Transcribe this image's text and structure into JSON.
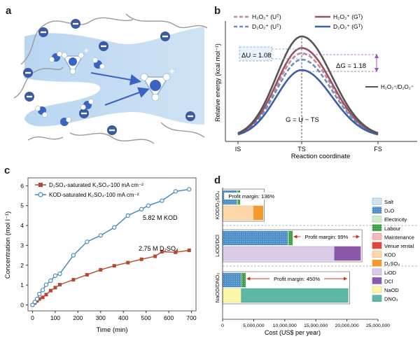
{
  "panels": {
    "a": {
      "letter": "a"
    },
    "b": {
      "letter": "b"
    },
    "c": {
      "letter": "c"
    },
    "d": {
      "letter": "d"
    }
  },
  "chart_data": [
    {
      "panel": "b",
      "type": "line",
      "xlabel": "Reaction coordinate",
      "ylabel": "Relative energy (kcal mol⁻¹)",
      "ticks": [
        "IS",
        "TS",
        "FS"
      ],
      "series": [
        {
          "name": "H₂O₂⁺ (Uᵀ)",
          "color": "#c48a98",
          "dash": true,
          "barrier": 0.8
        },
        {
          "name": "D₂O₂⁺ (Uᵀ)",
          "color": "#6b8fc0",
          "dash": true,
          "barrier": 0.74
        },
        {
          "name": "H₂O₂⁺ (Gᵀ)",
          "color": "#9c5166",
          "dash": false,
          "barrier": 0.85
        },
        {
          "name": "D₂O₂⁺ (Gᵀ)",
          "color": "#3c5fa6",
          "dash": false,
          "barrier": 0.64
        },
        {
          "name": "H₂O₂⁺/D₂O₂⁺",
          "color": "#555555",
          "dash": false,
          "barrier": 0.96
        }
      ],
      "annotations": {
        "du": "ΔU = 1.08",
        "dg": "ΔG = 1.18",
        "gibbs": "G = U − TS"
      },
      "legend": {
        "h_u": "H₂O₂⁺ (Uᵀ)",
        "d_u": "D₂O₂⁺ (Uᵀ)",
        "h_g": "H₂O₂⁺ (Gᵀ)",
        "d_g": "D₂O₂⁺ (Gᵀ)"
      }
    },
    {
      "panel": "c",
      "type": "line",
      "xlabel": "Time (min)",
      "ylabel": "Concentration (mol l⁻¹)",
      "xlim": [
        -20,
        720
      ],
      "ylim": [
        -0.3,
        6.4
      ],
      "xticks": [
        0,
        100,
        200,
        300,
        400,
        500,
        600,
        700
      ],
      "yticks": [
        0,
        1,
        2,
        3,
        4,
        5,
        6
      ],
      "series": [
        {
          "name": "D₂SO₄-saturated K₂SO₄-100 mA cm⁻²",
          "color": "#b5482e",
          "marker": "square",
          "end_label": "2.75 M D₂SO₄",
          "x": [
            0,
            10,
            20,
            30,
            45,
            60,
            80,
            100,
            120,
            180,
            240,
            300,
            360,
            420,
            480,
            540,
            570,
            630,
            690
          ],
          "y": [
            0,
            0.1,
            0.2,
            0.3,
            0.38,
            0.52,
            0.72,
            0.87,
            1.02,
            1.27,
            1.52,
            1.77,
            1.97,
            2.13,
            2.3,
            2.45,
            2.68,
            2.65,
            2.75
          ]
        },
        {
          "name": "KOD-saturated K₂SO₄-100 mA cm⁻²",
          "color": "#3e86b8",
          "marker": "circle",
          "end_label": "5.82 M KOD",
          "x": [
            0,
            10,
            20,
            30,
            45,
            60,
            80,
            100,
            120,
            180,
            240,
            300,
            360,
            420,
            480,
            510,
            570,
            630,
            690
          ],
          "y": [
            0,
            0.15,
            0.3,
            0.55,
            0.75,
            1.02,
            1.22,
            1.47,
            1.57,
            2.5,
            3.18,
            3.5,
            3.9,
            4.5,
            4.82,
            5.0,
            5.25,
            5.72,
            5.82
          ]
        }
      ]
    },
    {
      "panel": "d",
      "type": "bar",
      "xlabel": "Cost (US$ per year)",
      "xlim": [
        0,
        25000000
      ],
      "xticks": [
        "0",
        "5,000,000",
        "10,000,000",
        "15,000,000",
        "20,000,000",
        "25,000,000"
      ],
      "xtick_values": [
        0,
        5000000,
        10000000,
        15000000,
        20000000,
        25000000
      ],
      "groups": [
        {
          "label": "KOD/D₂SO₄",
          "profit": "Profit margin: 136%",
          "top": [
            {
              "component": "Salt",
              "value": 0
            },
            {
              "component": "D₂O",
              "value": 2300000
            },
            {
              "component": "Electricity",
              "value": 150000
            },
            {
              "component": "Labour",
              "value": 350000
            },
            {
              "component": "Maintenance",
              "value": 0
            }
          ],
          "bottom": [
            {
              "component": "KOD",
              "value": 5000000
            },
            {
              "component": "D₂SO₄",
              "value": 1500000
            }
          ]
        },
        {
          "label": "LiOD/DCl",
          "profit": "Profit margin: 99%",
          "top": [
            {
              "component": "D₂O",
              "value": 10500000
            },
            {
              "component": "Electricity",
              "value": 150000
            },
            {
              "component": "Labour",
              "value": 600000
            },
            {
              "component": "Maintenance",
              "value": 0
            }
          ],
          "bottom": [
            {
              "component": "LiOD",
              "value": 18000000
            },
            {
              "component": "DCl",
              "value": 4200000
            }
          ]
        },
        {
          "label": "NaOD/DNO₃",
          "profit": "Profit margin: 450%",
          "top": [
            {
              "component": "D₂O",
              "value": 3000000
            },
            {
              "component": "Electricity",
              "value": 100000
            },
            {
              "component": "Labour",
              "value": 600000
            },
            {
              "component": "Maintenance",
              "value": 0
            }
          ],
          "bottom": [
            {
              "component": "NaOD",
              "value": 3000000
            },
            {
              "component": "DNO₃",
              "value": 17200000
            }
          ]
        }
      ],
      "legend": [
        {
          "label": "Salt",
          "color": "#cfe3f2",
          "hatch": "dots",
          "edge": "#6ea7d6"
        },
        {
          "label": "D₂O",
          "color": "#4f8fc8",
          "hatch": "dots",
          "edge": "#4f8fc8"
        },
        {
          "label": "Electricity",
          "color": "#cdeacd",
          "hatch": "dots",
          "edge": "#8cc98c"
        },
        {
          "label": "Labour",
          "color": "#3e9e4a",
          "hatch": "dots",
          "edge": "#3e9e4a"
        },
        {
          "label": "Maintenance",
          "color": "#f2b6b6",
          "hatch": "dots",
          "edge": "#e08a8a"
        },
        {
          "label": "Venue rental",
          "color": "#e0443c",
          "hatch": "none",
          "edge": "#e0443c"
        },
        {
          "label": "KOD",
          "color": "#fcd8a8",
          "hatch": "none",
          "edge": "#e8b070"
        },
        {
          "label": "D₂SO₄",
          "color": "#f29a2e",
          "hatch": "none",
          "edge": "#f29a2e"
        },
        {
          "label": "LiOD",
          "color": "#dccbe8",
          "hatch": "none",
          "edge": "#b79ccd"
        },
        {
          "label": "DCl",
          "color": "#8a5aa8",
          "hatch": "none",
          "edge": "#8a5aa8"
        },
        {
          "label": "NaOD",
          "color": "#fdf5a8",
          "hatch": "none",
          "edge": "#d9cf6a"
        },
        {
          "label": "DNO₃",
          "color": "#5fb7a6",
          "hatch": "none",
          "edge": "#4a9f8e"
        }
      ]
    }
  ]
}
